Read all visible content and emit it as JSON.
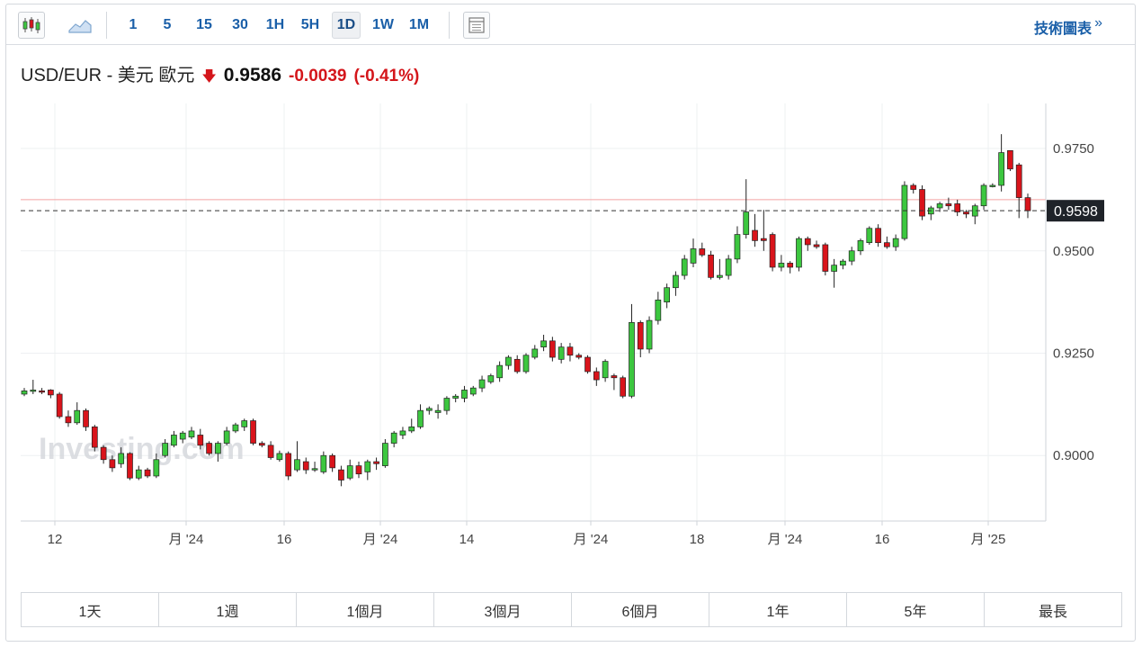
{
  "toolbar": {
    "intervals": [
      "1",
      "5",
      "15",
      "30",
      "1H",
      "5H",
      "1D",
      "1W",
      "1M"
    ],
    "active_interval": "1D",
    "technical_link": "技術圖表",
    "technical_arrow": "»"
  },
  "quote": {
    "name": "USD/EUR - 美元 歐元",
    "price": "0.9586",
    "change": "-0.0039",
    "change_pct": "(-0.41%)",
    "direction": "down"
  },
  "ranges": [
    "1天",
    "1週",
    "1個月",
    "3個月",
    "6個月",
    "1年",
    "5年",
    "最長"
  ],
  "colors": {
    "up": "#3cc73f",
    "down": "#d9141b",
    "link": "#1a5fa8",
    "last_price_bg": "#1f2329"
  },
  "watermark": "Investing.com",
  "chart_data": {
    "type": "candlestick",
    "y_ticks": [
      "0.9000",
      "0.9250",
      "0.9500",
      "0.9750"
    ],
    "ylim": [
      0.884,
      0.986
    ],
    "x_tick_labels": [
      "12",
      "月 '24",
      "16",
      "月 '24",
      "14",
      "月 '24",
      "18",
      "月 '24",
      "16",
      "月 '25"
    ],
    "last_price_label": "0.9598",
    "last_price": 0.9598,
    "reference_line": 0.9625,
    "candles": [
      [
        0.915,
        0.9165,
        0.9145,
        0.9158
      ],
      [
        0.916,
        0.9185,
        0.915,
        0.916
      ],
      [
        0.9158,
        0.9165,
        0.915,
        0.9155
      ],
      [
        0.916,
        0.9162,
        0.914,
        0.9148
      ],
      [
        0.915,
        0.9155,
        0.909,
        0.9095
      ],
      [
        0.9095,
        0.911,
        0.907,
        0.908
      ],
      [
        0.908,
        0.913,
        0.9075,
        0.911
      ],
      [
        0.911,
        0.9115,
        0.906,
        0.907
      ],
      [
        0.907,
        0.9075,
        0.901,
        0.902
      ],
      [
        0.902,
        0.9025,
        0.898,
        0.899
      ],
      [
        0.899,
        0.9,
        0.896,
        0.897
      ],
      [
        0.898,
        0.902,
        0.897,
        0.9005
      ],
      [
        0.9005,
        0.9008,
        0.894,
        0.8945
      ],
      [
        0.8945,
        0.8975,
        0.894,
        0.8965
      ],
      [
        0.8965,
        0.897,
        0.8945,
        0.895
      ],
      [
        0.895,
        0.9005,
        0.8945,
        0.899
      ],
      [
        0.9,
        0.904,
        0.8995,
        0.903
      ],
      [
        0.9025,
        0.906,
        0.902,
        0.905
      ],
      [
        0.904,
        0.906,
        0.903,
        0.9055
      ],
      [
        0.9045,
        0.907,
        0.904,
        0.906
      ],
      [
        0.905,
        0.9065,
        0.9015,
        0.9025
      ],
      [
        0.903,
        0.9035,
        0.9,
        0.9005
      ],
      [
        0.9005,
        0.9035,
        0.8985,
        0.903
      ],
      [
        0.903,
        0.907,
        0.9025,
        0.906
      ],
      [
        0.906,
        0.908,
        0.9055,
        0.9075
      ],
      [
        0.907,
        0.909,
        0.906,
        0.9085
      ],
      [
        0.9085,
        0.909,
        0.9025,
        0.903
      ],
      [
        0.903,
        0.9035,
        0.902,
        0.9025
      ],
      [
        0.9025,
        0.9035,
        0.899,
        0.8995
      ],
      [
        0.899,
        0.9012,
        0.8985,
        0.9005
      ],
      [
        0.9005,
        0.901,
        0.894,
        0.895
      ],
      [
        0.8965,
        0.9035,
        0.896,
        0.899
      ],
      [
        0.8985,
        0.8995,
        0.8955,
        0.8965
      ],
      [
        0.8965,
        0.8985,
        0.896,
        0.8968
      ],
      [
        0.896,
        0.901,
        0.8955,
        0.9
      ],
      [
        0.9,
        0.9005,
        0.896,
        0.897
      ],
      [
        0.8965,
        0.8975,
        0.8925,
        0.894
      ],
      [
        0.8945,
        0.899,
        0.894,
        0.8975
      ],
      [
        0.8975,
        0.8985,
        0.8945,
        0.8955
      ],
      [
        0.896,
        0.899,
        0.894,
        0.8985
      ],
      [
        0.8985,
        0.8995,
        0.8965,
        0.898
      ],
      [
        0.8975,
        0.904,
        0.897,
        0.903
      ],
      [
        0.903,
        0.906,
        0.902,
        0.9055
      ],
      [
        0.905,
        0.907,
        0.904,
        0.906
      ],
      [
        0.906,
        0.909,
        0.9055,
        0.907
      ],
      [
        0.907,
        0.9125,
        0.9065,
        0.911
      ],
      [
        0.911,
        0.912,
        0.91,
        0.9115
      ],
      [
        0.9105,
        0.9125,
        0.909,
        0.911
      ],
      [
        0.911,
        0.9145,
        0.91,
        0.914
      ],
      [
        0.914,
        0.915,
        0.913,
        0.9145
      ],
      [
        0.914,
        0.917,
        0.913,
        0.916
      ],
      [
        0.915,
        0.917,
        0.9145,
        0.9165
      ],
      [
        0.9165,
        0.9195,
        0.9155,
        0.9185
      ],
      [
        0.918,
        0.92,
        0.9175,
        0.9195
      ],
      [
        0.919,
        0.923,
        0.918,
        0.922
      ],
      [
        0.922,
        0.9245,
        0.921,
        0.924
      ],
      [
        0.9235,
        0.9245,
        0.92,
        0.9205
      ],
      [
        0.9205,
        0.925,
        0.92,
        0.9245
      ],
      [
        0.924,
        0.927,
        0.9235,
        0.926
      ],
      [
        0.9265,
        0.9295,
        0.9255,
        0.928
      ],
      [
        0.928,
        0.929,
        0.923,
        0.924
      ],
      [
        0.9235,
        0.9275,
        0.9225,
        0.9265
      ],
      [
        0.9265,
        0.9275,
        0.923,
        0.9245
      ],
      [
        0.9245,
        0.925,
        0.9235,
        0.924
      ],
      [
        0.924,
        0.9245,
        0.92,
        0.9205
      ],
      [
        0.9205,
        0.9215,
        0.917,
        0.9185
      ],
      [
        0.919,
        0.9235,
        0.918,
        0.923
      ],
      [
        0.9195,
        0.92,
        0.916,
        0.919
      ],
      [
        0.919,
        0.9195,
        0.914,
        0.9145
      ],
      [
        0.9145,
        0.937,
        0.914,
        0.9325
      ],
      [
        0.9325,
        0.933,
        0.924,
        0.926
      ],
      [
        0.926,
        0.934,
        0.925,
        0.933
      ],
      [
        0.933,
        0.94,
        0.932,
        0.938
      ],
      [
        0.9375,
        0.942,
        0.936,
        0.941
      ],
      [
        0.941,
        0.945,
        0.939,
        0.944
      ],
      [
        0.944,
        0.949,
        0.943,
        0.948
      ],
      [
        0.947,
        0.953,
        0.946,
        0.9505
      ],
      [
        0.9505,
        0.952,
        0.9485,
        0.949
      ],
      [
        0.949,
        0.95,
        0.943,
        0.9435
      ],
      [
        0.9435,
        0.948,
        0.943,
        0.944
      ],
      [
        0.944,
        0.949,
        0.943,
        0.948
      ],
      [
        0.948,
        0.956,
        0.947,
        0.954
      ],
      [
        0.954,
        0.9675,
        0.953,
        0.9595
      ],
      [
        0.955,
        0.959,
        0.951,
        0.9525
      ],
      [
        0.953,
        0.96,
        0.95,
        0.9525
      ],
      [
        0.954,
        0.9545,
        0.945,
        0.946
      ],
      [
        0.946,
        0.949,
        0.945,
        0.947
      ],
      [
        0.947,
        0.9475,
        0.9445,
        0.946
      ],
      [
        0.946,
        0.9535,
        0.945,
        0.953
      ],
      [
        0.953,
        0.9535,
        0.95,
        0.9515
      ],
      [
        0.9515,
        0.9525,
        0.9505,
        0.951
      ],
      [
        0.9515,
        0.952,
        0.944,
        0.945
      ],
      [
        0.945,
        0.948,
        0.941,
        0.9465
      ],
      [
        0.9465,
        0.948,
        0.9455,
        0.9475
      ],
      [
        0.9475,
        0.951,
        0.9465,
        0.95
      ],
      [
        0.95,
        0.953,
        0.949,
        0.9525
      ],
      [
        0.952,
        0.956,
        0.9515,
        0.9555
      ],
      [
        0.9555,
        0.9565,
        0.951,
        0.952
      ],
      [
        0.952,
        0.9535,
        0.9505,
        0.951
      ],
      [
        0.951,
        0.954,
        0.95,
        0.953
      ],
      [
        0.953,
        0.967,
        0.9525,
        0.966
      ],
      [
        0.966,
        0.9665,
        0.964,
        0.965
      ],
      [
        0.965,
        0.966,
        0.9575,
        0.9585
      ],
      [
        0.959,
        0.961,
        0.9575,
        0.9605
      ],
      [
        0.9605,
        0.962,
        0.9595,
        0.9615
      ],
      [
        0.9615,
        0.963,
        0.96,
        0.961
      ],
      [
        0.9615,
        0.9625,
        0.9585,
        0.9595
      ],
      [
        0.9595,
        0.96,
        0.958,
        0.959
      ],
      [
        0.9585,
        0.9615,
        0.9565,
        0.961
      ],
      [
        0.961,
        0.9665,
        0.96,
        0.966
      ],
      [
        0.966,
        0.9665,
        0.9655,
        0.966
      ],
      [
        0.966,
        0.9785,
        0.9645,
        0.974
      ],
      [
        0.9745,
        0.9745,
        0.9695,
        0.97
      ],
      [
        0.971,
        0.9715,
        0.958,
        0.963
      ],
      [
        0.963,
        0.964,
        0.958,
        0.9598
      ]
    ]
  }
}
